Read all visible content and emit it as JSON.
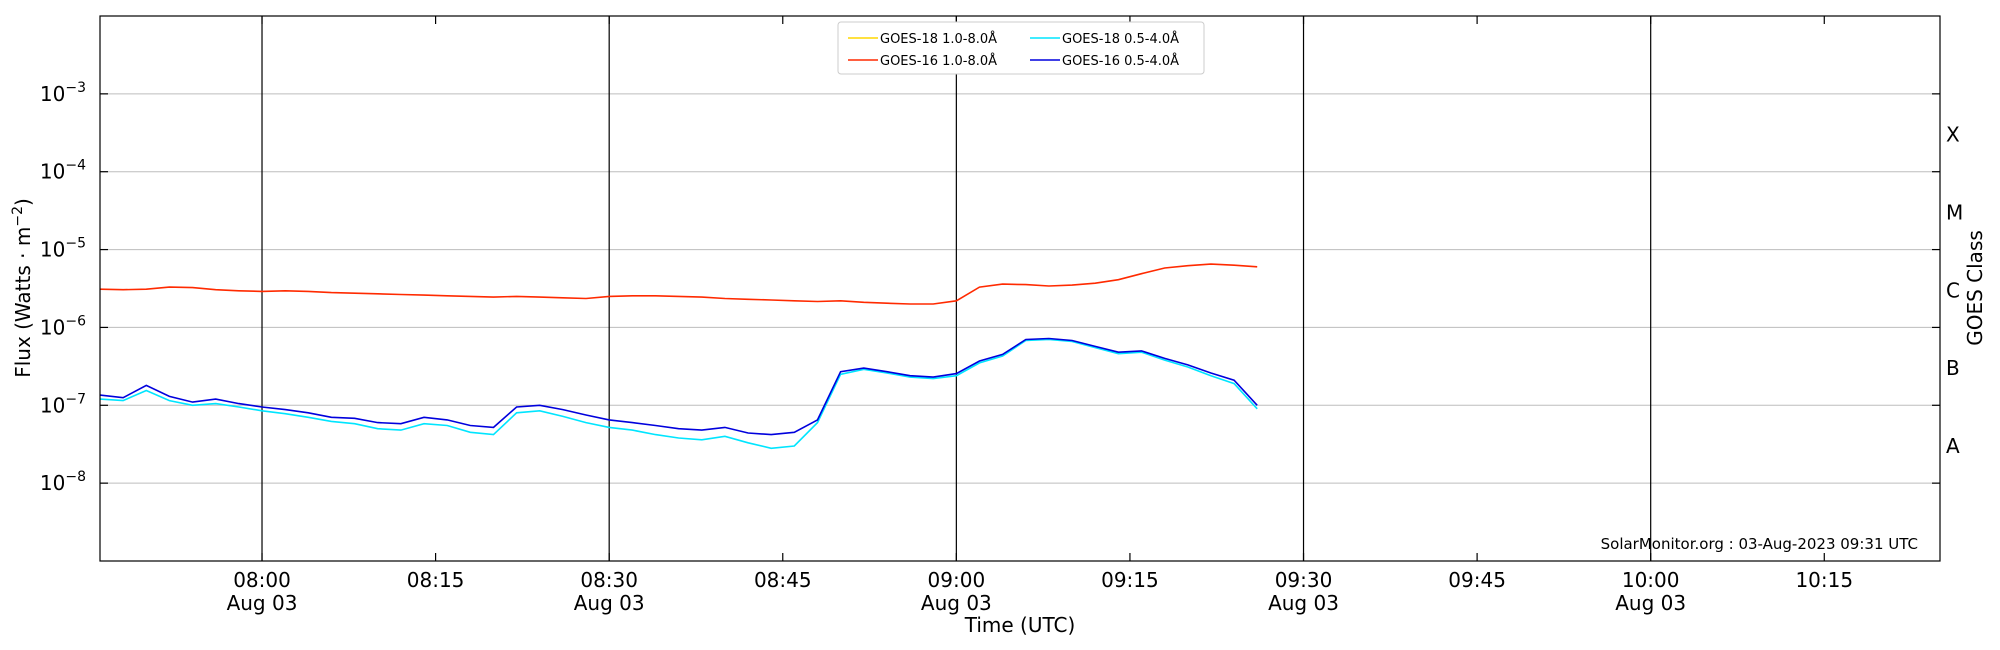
{
  "chart_data": {
    "type": "line",
    "xlabel": "Time (UTC)",
    "ylabel_main": "Flux (Watts · m",
    "ylabel_sup": "−2",
    "ylabel_close": ")",
    "y2label": "GOES Class",
    "annotation": "SolarMonitor.org : 03-Aug-2023 09:31 UTC",
    "x_range_minutes": [
      "07:46",
      "10:25"
    ],
    "ylim_log10": [
      -9,
      -2
    ],
    "yscale": "log",
    "grid": "horizontal at decades, vertical at half-hours",
    "legend_position": "top-center",
    "x_ticks": [
      {
        "t": "08:00",
        "date": "Aug 03"
      },
      {
        "t": "08:15",
        "date": ""
      },
      {
        "t": "08:30",
        "date": "Aug 03"
      },
      {
        "t": "08:45",
        "date": ""
      },
      {
        "t": "09:00",
        "date": "Aug 03"
      },
      {
        "t": "09:15",
        "date": ""
      },
      {
        "t": "09:30",
        "date": "Aug 03"
      },
      {
        "t": "09:45",
        "date": ""
      },
      {
        "t": "10:00",
        "date": "Aug 03"
      },
      {
        "t": "10:15",
        "date": ""
      }
    ],
    "vlines": [
      "08:00",
      "08:30",
      "09:00",
      "09:30",
      "10:00"
    ],
    "y_ticks": [
      {
        "base": "10",
        "exp": "−3",
        "value": 0.001
      },
      {
        "base": "10",
        "exp": "−4",
        "value": 0.0001
      },
      {
        "base": "10",
        "exp": "−5",
        "value": 1e-05
      },
      {
        "base": "10",
        "exp": "−6",
        "value": 1e-06
      },
      {
        "base": "10",
        "exp": "−7",
        "value": 1e-07
      },
      {
        "base": "10",
        "exp": "−8",
        "value": 1e-08
      }
    ],
    "goes_classes": [
      {
        "label": "X",
        "value": 0.0003
      },
      {
        "label": "M",
        "value": 3e-05
      },
      {
        "label": "C",
        "value": 3e-06
      },
      {
        "label": "B",
        "value": 3e-07
      },
      {
        "label": "A",
        "value": 3e-08
      }
    ],
    "series": [
      {
        "name": "GOES-18 1.0-8.0Å",
        "color": "#ffd700",
        "x": [],
        "values": []
      },
      {
        "name": "GOES-16 1.0-8.0Å",
        "color": "#ff2a00",
        "x": [
          "07:46",
          "07:48",
          "07:50",
          "07:52",
          "07:54",
          "07:56",
          "07:58",
          "08:00",
          "08:02",
          "08:04",
          "08:06",
          "08:08",
          "08:10",
          "08:12",
          "08:14",
          "08:16",
          "08:18",
          "08:20",
          "08:22",
          "08:24",
          "08:26",
          "08:28",
          "08:30",
          "08:32",
          "08:34",
          "08:36",
          "08:38",
          "08:40",
          "08:42",
          "08:44",
          "08:46",
          "08:48",
          "08:50",
          "08:52",
          "08:54",
          "08:56",
          "08:58",
          "09:00",
          "09:02",
          "09:04",
          "09:06",
          "09:08",
          "09:10",
          "09:12",
          "09:14",
          "09:16",
          "09:18",
          "09:20",
          "09:22",
          "09:24",
          "09:26"
        ],
        "values": [
          3.1e-06,
          3.05e-06,
          3.1e-06,
          3.3e-06,
          3.25e-06,
          3.05e-06,
          2.95e-06,
          2.9e-06,
          2.95e-06,
          2.9e-06,
          2.8e-06,
          2.75e-06,
          2.7e-06,
          2.65e-06,
          2.6e-06,
          2.55e-06,
          2.5e-06,
          2.45e-06,
          2.5e-06,
          2.45e-06,
          2.4e-06,
          2.35e-06,
          2.5e-06,
          2.55e-06,
          2.55e-06,
          2.5e-06,
          2.45e-06,
          2.35e-06,
          2.3e-06,
          2.25e-06,
          2.2e-06,
          2.15e-06,
          2.2e-06,
          2.1e-06,
          2.05e-06,
          2e-06,
          2e-06,
          2.2e-06,
          3.3e-06,
          3.6e-06,
          3.55e-06,
          3.4e-06,
          3.5e-06,
          3.7e-06,
          4.1e-06,
          4.9e-06,
          5.8e-06,
          6.2e-06,
          6.5e-06,
          6.3e-06,
          6e-06
        ]
      },
      {
        "name": "GOES-18 0.5-4.0Å",
        "color": "#00e5ff",
        "x": [
          "07:46",
          "07:48",
          "07:50",
          "07:52",
          "07:54",
          "07:56",
          "07:58",
          "08:00",
          "08:02",
          "08:04",
          "08:06",
          "08:08",
          "08:10",
          "08:12",
          "08:14",
          "08:16",
          "08:18",
          "08:20",
          "08:22",
          "08:24",
          "08:26",
          "08:28",
          "08:30",
          "08:32",
          "08:34",
          "08:36",
          "08:38",
          "08:40",
          "08:42",
          "08:44",
          "08:46",
          "08:48",
          "08:50",
          "08:52",
          "08:54",
          "08:56",
          "08:58",
          "09:00",
          "09:02",
          "09:04",
          "09:06",
          "09:08",
          "09:10",
          "09:12",
          "09:14",
          "09:16",
          "09:18",
          "09:20",
          "09:22",
          "09:24",
          "09:26"
        ],
        "values": [
          1.2e-07,
          1.15e-07,
          1.55e-07,
          1.15e-07,
          1e-07,
          1.05e-07,
          9.5e-08,
          8.5e-08,
          7.8e-08,
          7e-08,
          6.2e-08,
          5.8e-08,
          5e-08,
          4.8e-08,
          5.8e-08,
          5.5e-08,
          4.5e-08,
          4.2e-08,
          8e-08,
          8.5e-08,
          7.2e-08,
          6e-08,
          5.2e-08,
          4.8e-08,
          4.2e-08,
          3.8e-08,
          3.6e-08,
          4e-08,
          3.3e-08,
          2.8e-08,
          3e-08,
          6e-08,
          2.5e-07,
          2.9e-07,
          2.6e-07,
          2.3e-07,
          2.2e-07,
          2.4e-07,
          3.5e-07,
          4.3e-07,
          6.8e-07,
          7e-07,
          6.6e-07,
          5.5e-07,
          4.6e-07,
          4.8e-07,
          3.8e-07,
          3.1e-07,
          2.4e-07,
          1.9e-07,
          9e-08
        ]
      },
      {
        "name": "GOES-16 0.5-4.0Å",
        "color": "#0000dd",
        "x": [
          "07:46",
          "07:48",
          "07:50",
          "07:52",
          "07:54",
          "07:56",
          "07:58",
          "08:00",
          "08:02",
          "08:04",
          "08:06",
          "08:08",
          "08:10",
          "08:12",
          "08:14",
          "08:16",
          "08:18",
          "08:20",
          "08:22",
          "08:24",
          "08:26",
          "08:28",
          "08:30",
          "08:32",
          "08:34",
          "08:36",
          "08:38",
          "08:40",
          "08:42",
          "08:44",
          "08:46",
          "08:48",
          "08:50",
          "08:52",
          "08:54",
          "08:56",
          "08:58",
          "09:00",
          "09:02",
          "09:04",
          "09:06",
          "09:08",
          "09:10",
          "09:12",
          "09:14",
          "09:16",
          "09:18",
          "09:20",
          "09:22",
          "09:24",
          "09:26"
        ],
        "values": [
          1.35e-07,
          1.25e-07,
          1.8e-07,
          1.3e-07,
          1.1e-07,
          1.2e-07,
          1.05e-07,
          9.5e-08,
          8.8e-08,
          8e-08,
          7e-08,
          6.8e-08,
          6e-08,
          5.8e-08,
          7e-08,
          6.5e-08,
          5.5e-08,
          5.2e-08,
          9.5e-08,
          1e-07,
          8.8e-08,
          7.5e-08,
          6.5e-08,
          6e-08,
          5.5e-08,
          5e-08,
          4.8e-08,
          5.2e-08,
          4.4e-08,
          4.2e-08,
          4.5e-08,
          6.5e-08,
          2.7e-07,
          3e-07,
          2.7e-07,
          2.4e-07,
          2.3e-07,
          2.55e-07,
          3.7e-07,
          4.5e-07,
          7e-07,
          7.2e-07,
          6.8e-07,
          5.7e-07,
          4.8e-07,
          5e-07,
          4e-07,
          3.3e-07,
          2.6e-07,
          2.1e-07,
          1e-07
        ]
      }
    ]
  }
}
